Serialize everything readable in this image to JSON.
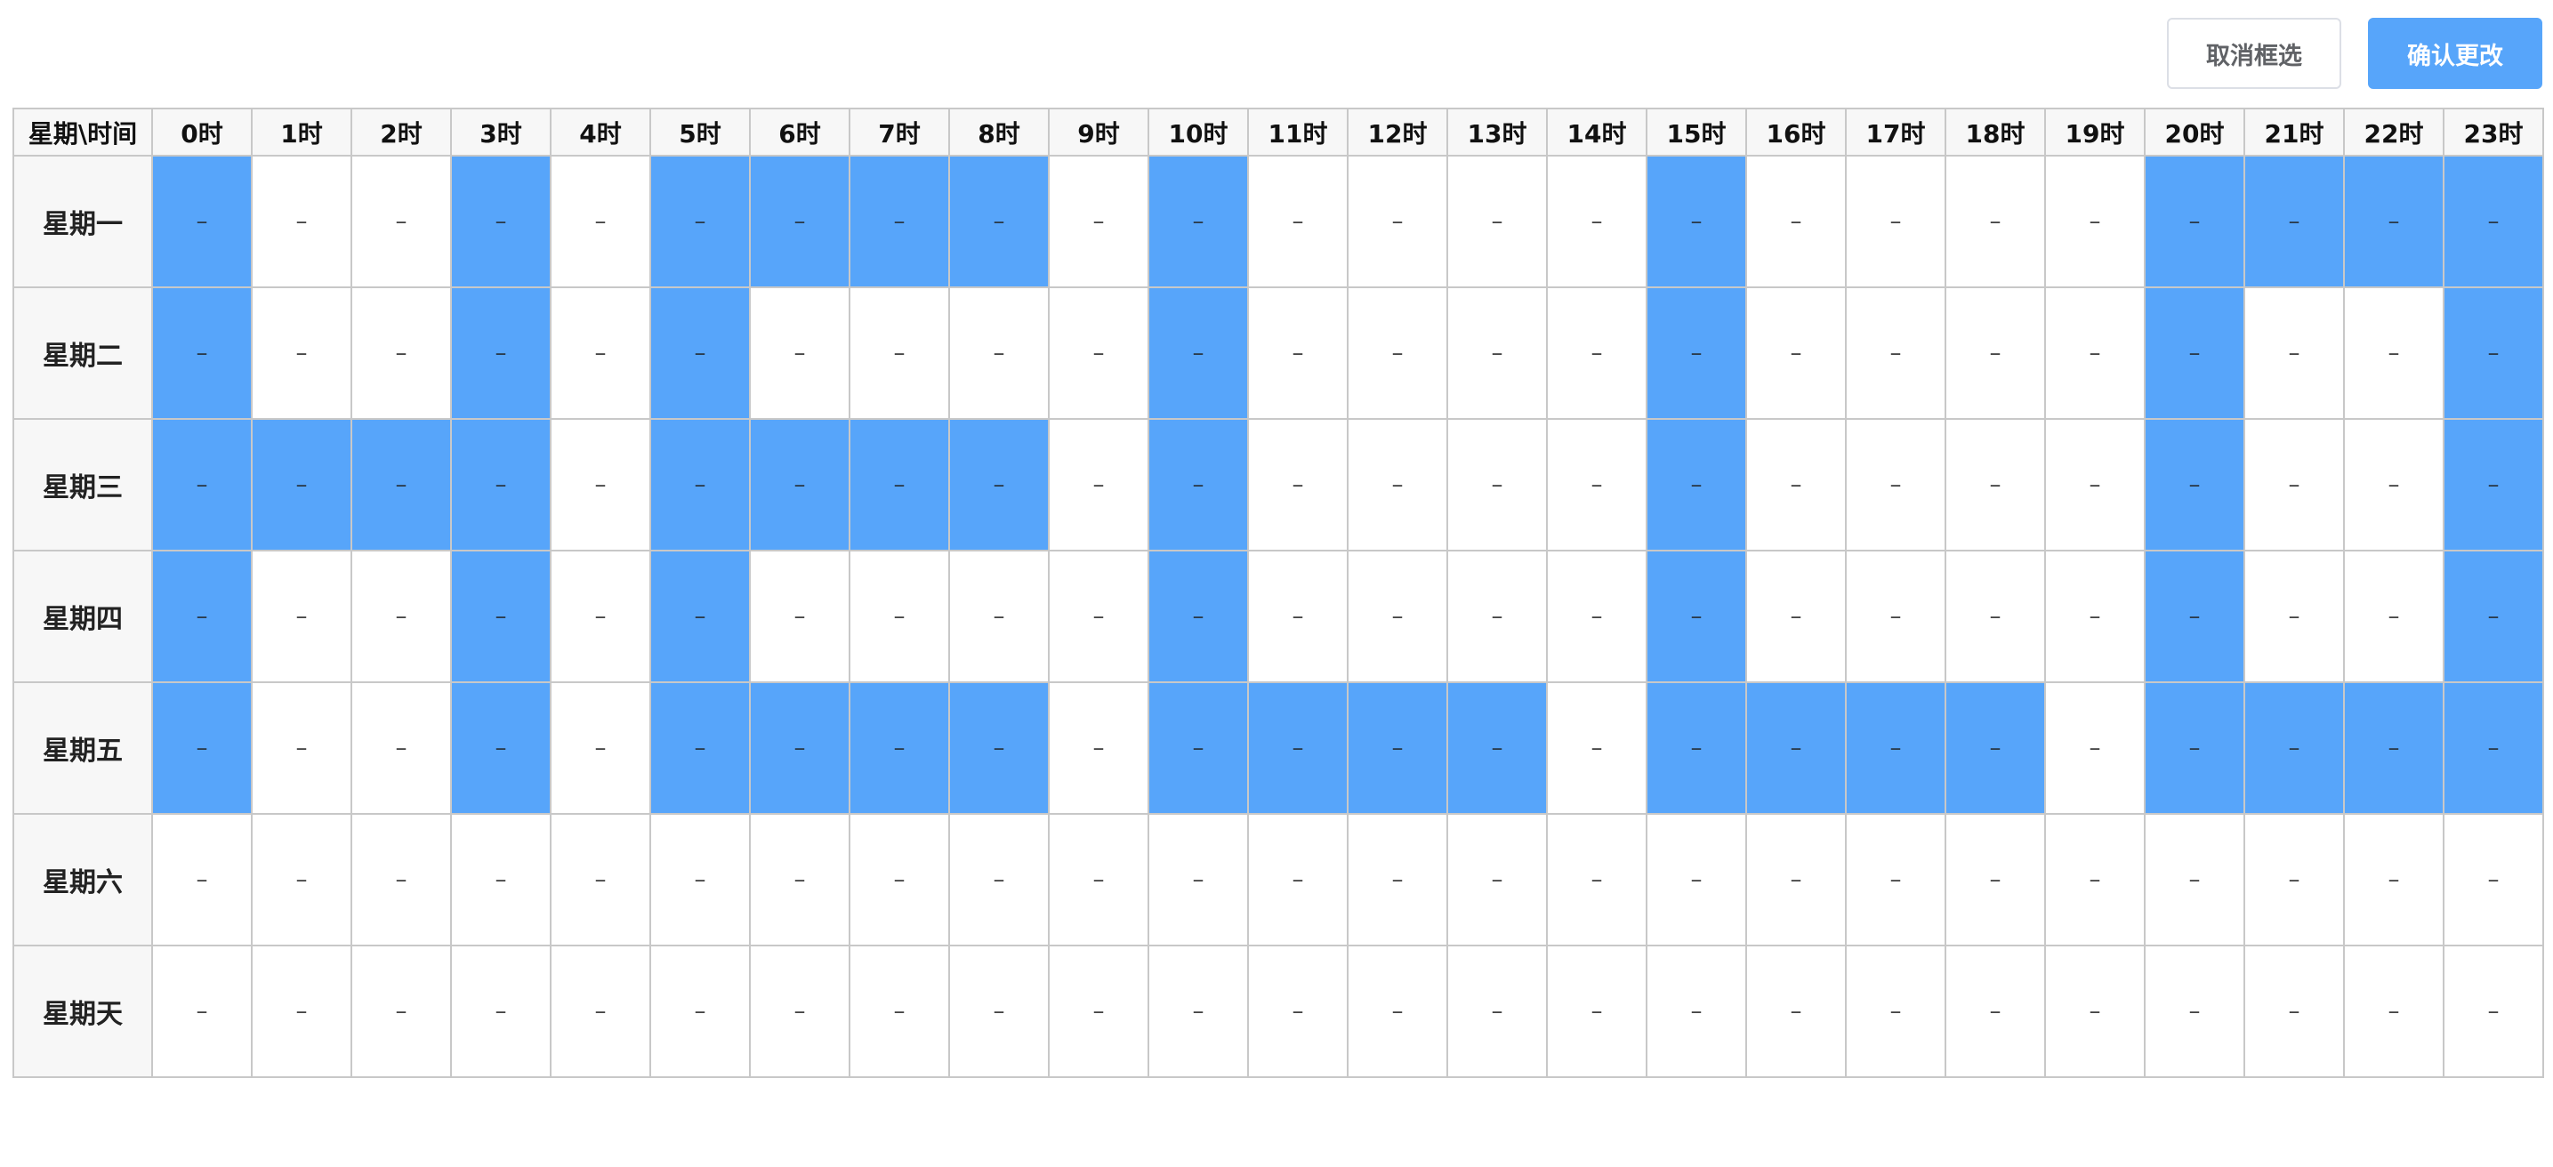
{
  "toolbar": {
    "cancel_label": "取消框选",
    "confirm_label": "确认更改"
  },
  "table": {
    "corner_label": "星期\\时间",
    "hours": [
      "0时",
      "1时",
      "2时",
      "3时",
      "4时",
      "5时",
      "6时",
      "7时",
      "8时",
      "9时",
      "10时",
      "11时",
      "12时",
      "13时",
      "14时",
      "15时",
      "16时",
      "17时",
      "18时",
      "19时",
      "20时",
      "21时",
      "22时",
      "23时"
    ],
    "cell_text": "–",
    "rows": [
      {
        "day": "星期一",
        "selected": [
          0,
          3,
          5,
          6,
          7,
          8,
          10,
          15,
          20,
          21,
          22,
          23
        ]
      },
      {
        "day": "星期二",
        "selected": [
          0,
          3,
          5,
          10,
          15,
          20,
          23
        ]
      },
      {
        "day": "星期三",
        "selected": [
          0,
          1,
          2,
          3,
          5,
          6,
          7,
          8,
          10,
          15,
          20,
          23
        ]
      },
      {
        "day": "星期四",
        "selected": [
          0,
          3,
          5,
          10,
          15,
          20,
          23
        ]
      },
      {
        "day": "星期五",
        "selected": [
          0,
          3,
          5,
          6,
          7,
          8,
          10,
          11,
          12,
          13,
          15,
          16,
          17,
          18,
          20,
          21,
          22,
          23
        ]
      },
      {
        "day": "星期六",
        "selected": []
      },
      {
        "day": "星期天",
        "selected": []
      }
    ]
  },
  "colors": {
    "selected": "#57a5fa",
    "header_bg": "#f7f7f7",
    "border": "#c8c8c8"
  }
}
